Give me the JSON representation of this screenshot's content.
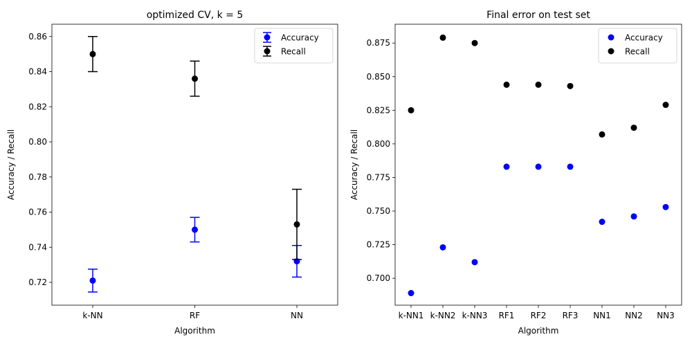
{
  "chart_data": [
    {
      "type": "scatter",
      "title": "optimized CV, k = 5",
      "xlabel": "Algorithm",
      "ylabel": "Accuracy / Recall",
      "categories": [
        "k-NN",
        "RF",
        "NN"
      ],
      "ylim": [
        0.707,
        0.867
      ],
      "yticks": [
        0.72,
        0.74,
        0.76,
        0.78,
        0.8,
        0.82,
        0.84,
        0.86
      ],
      "ytick_labels": [
        "0.72",
        "0.74",
        "0.76",
        "0.78",
        "0.80",
        "0.82",
        "0.84",
        "0.86"
      ],
      "grid": false,
      "legend": "top-right",
      "series": [
        {
          "name": "Accuracy",
          "color": "#0000ff",
          "values": [
            0.721,
            0.75,
            0.732
          ],
          "errors": [
            0.0065,
            0.007,
            0.009
          ]
        },
        {
          "name": "Recall",
          "color": "#000000",
          "values": [
            0.85,
            0.836,
            0.753
          ],
          "errors": [
            0.01,
            0.01,
            0.02
          ]
        }
      ]
    },
    {
      "type": "scatter",
      "title": "Final error on test set",
      "xlabel": "Algorithm",
      "ylabel": "Accuracy / Recall",
      "categories": [
        "k-NN1",
        "k-NN2",
        "k-NN3",
        "RF1",
        "RF2",
        "RF3",
        "NN1",
        "NN2",
        "NN3"
      ],
      "ylim": [
        0.68,
        0.889
      ],
      "yticks": [
        0.7,
        0.725,
        0.75,
        0.775,
        0.8,
        0.825,
        0.85,
        0.875
      ],
      "ytick_labels": [
        "0.700",
        "0.725",
        "0.750",
        "0.775",
        "0.800",
        "0.825",
        "0.850",
        "0.875"
      ],
      "grid": false,
      "legend": "top-right",
      "series": [
        {
          "name": "Accuracy",
          "color": "#0000ff",
          "values": [
            0.689,
            0.723,
            0.712,
            0.783,
            0.783,
            0.783,
            0.742,
            0.746,
            0.753
          ]
        },
        {
          "name": "Recall",
          "color": "#000000",
          "values": [
            0.825,
            0.879,
            0.875,
            0.844,
            0.844,
            0.843,
            0.807,
            0.812,
            0.829
          ]
        }
      ]
    }
  ]
}
